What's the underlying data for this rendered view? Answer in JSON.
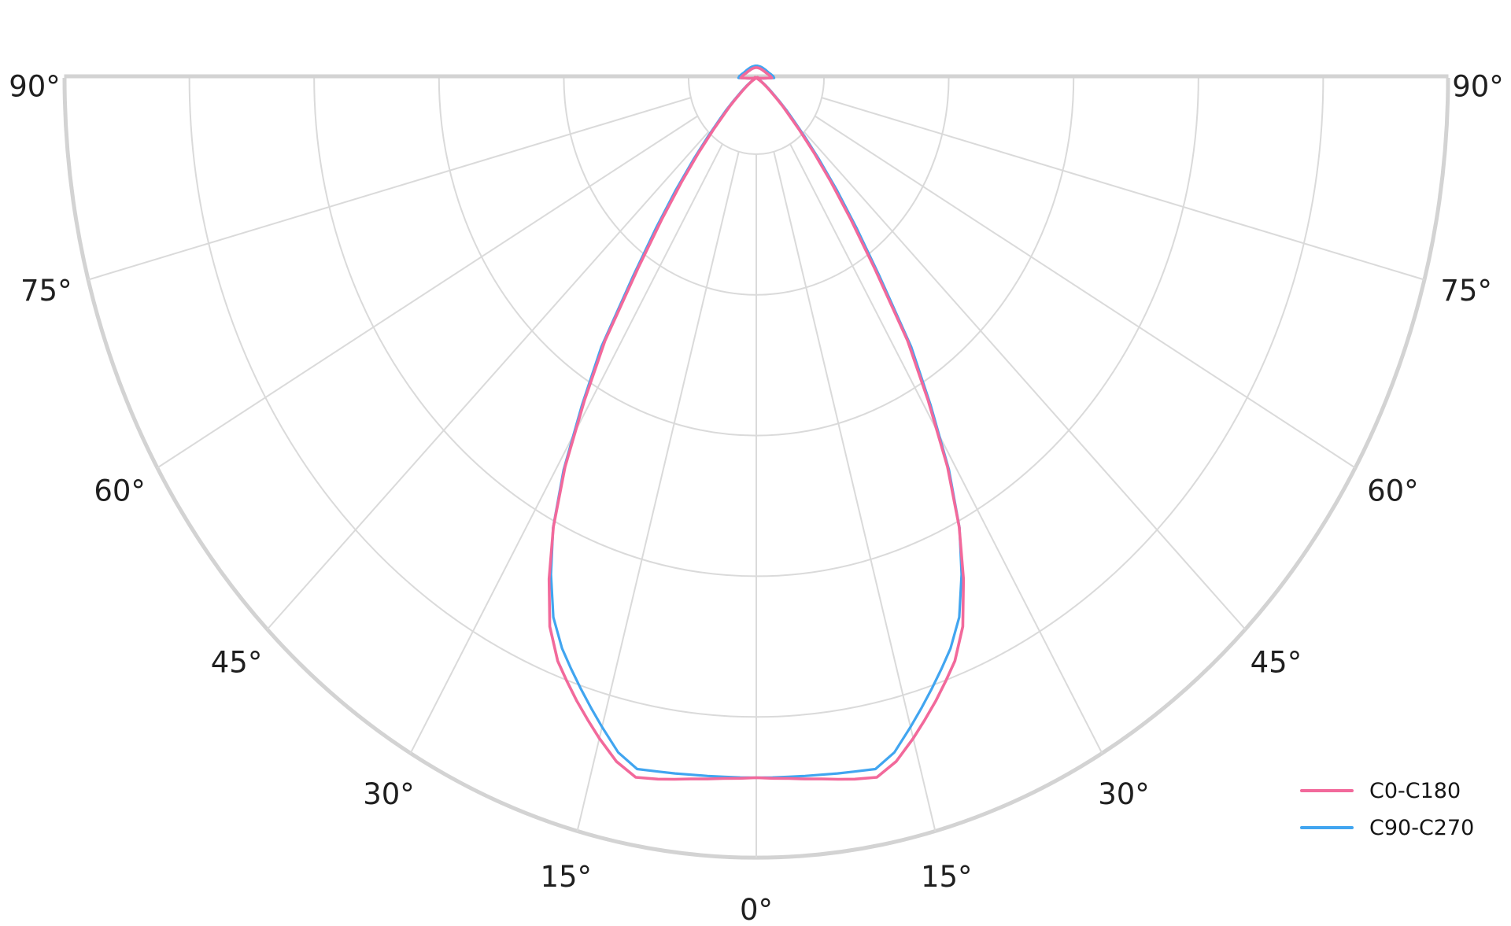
{
  "chart_data": {
    "type": "line",
    "subtype": "polar_photometric_intensity",
    "title": "",
    "orientation": "half_polar_downward",
    "angular_tick_degrees": [
      0,
      15,
      30,
      45,
      60,
      75,
      90
    ],
    "angular_tick_labels": [
      "0°",
      "15°",
      "30°",
      "45°",
      "60°",
      "75°",
      "90°"
    ],
    "angular_labels_both_sides": true,
    "radial_rings_fraction_of_max": [
      0.1667,
      0.3333,
      0.5,
      0.6667,
      0.8333,
      1.0
    ],
    "radial_ring_value_labels_shown": false,
    "grid": "on",
    "legend_position": "bottom-right",
    "series": [
      {
        "name": "C0-C180",
        "color": "#F2699B",
        "line_width": 3.6,
        "points_deg_intensity": [
          [
            0,
            0.905
          ],
          [
            3,
            0.907
          ],
          [
            6,
            0.911
          ],
          [
            9,
            0.917
          ],
          [
            11,
            0.92
          ],
          [
            13,
            0.907
          ],
          [
            15,
            0.886
          ],
          [
            18,
            0.852
          ],
          [
            21,
            0.816
          ],
          [
            23,
            0.782
          ],
          [
            25,
            0.731
          ],
          [
            27,
            0.673
          ],
          [
            29,
            0.603
          ],
          [
            31,
            0.522
          ],
          [
            33,
            0.447
          ],
          [
            35,
            0.352
          ],
          [
            37,
            0.286
          ],
          [
            39,
            0.235
          ],
          [
            41,
            0.194
          ],
          [
            43,
            0.161
          ],
          [
            45,
            0.136
          ],
          [
            48,
            0.113
          ],
          [
            50,
            0.101
          ],
          [
            53,
            0.091
          ],
          [
            56,
            0.084
          ],
          [
            60,
            0.079
          ],
          [
            65,
            0.076
          ],
          [
            70,
            0.0745
          ],
          [
            75,
            0.0745
          ],
          [
            80,
            0.0755
          ],
          [
            85,
            0.078
          ],
          [
            88,
            0.086
          ],
          [
            90,
            0.097
          ],
          [
            95,
            0.0955
          ],
          [
            100,
            0.094
          ],
          [
            110,
            0.0915
          ],
          [
            120,
            0.09
          ],
          [
            135,
            0.0888
          ],
          [
            150,
            0.0885
          ],
          [
            165,
            0.0884
          ],
          [
            180,
            0.0885
          ]
        ]
      },
      {
        "name": "C90-C270",
        "color": "#41A5F0",
        "line_width": 3.2,
        "points_deg_intensity": [
          [
            0,
            0.905
          ],
          [
            3,
            0.905
          ],
          [
            6,
            0.906
          ],
          [
            9,
            0.908
          ],
          [
            11,
            0.91
          ],
          [
            13,
            0.896
          ],
          [
            15,
            0.872
          ],
          [
            18,
            0.836
          ],
          [
            21,
            0.8
          ],
          [
            23,
            0.77
          ],
          [
            25,
            0.725
          ],
          [
            27,
            0.674
          ],
          [
            29,
            0.607
          ],
          [
            31,
            0.528
          ],
          [
            33,
            0.456
          ],
          [
            35,
            0.364
          ],
          [
            37,
            0.298
          ],
          [
            39,
            0.247
          ],
          [
            41,
            0.204
          ],
          [
            43,
            0.17
          ],
          [
            45,
            0.144
          ],
          [
            48,
            0.119
          ],
          [
            50,
            0.106
          ],
          [
            53,
            0.095
          ],
          [
            56,
            0.088
          ],
          [
            60,
            0.082
          ],
          [
            65,
            0.079
          ],
          [
            70,
            0.0775
          ],
          [
            75,
            0.0775
          ],
          [
            80,
            0.0785
          ],
          [
            85,
            0.081
          ],
          [
            88,
            0.089
          ],
          [
            90,
            0.1
          ],
          [
            95,
            0.099
          ],
          [
            100,
            0.097
          ],
          [
            110,
            0.094
          ],
          [
            120,
            0.0925
          ],
          [
            135,
            0.0912
          ],
          [
            150,
            0.0908
          ],
          [
            165,
            0.0906
          ],
          [
            180,
            0.0907
          ]
        ]
      }
    ],
    "legend": {
      "entries": [
        "C0-C180",
        "C90-C270"
      ]
    }
  },
  "colors": {
    "background": "#ffffff",
    "grid_minor": "#dadada",
    "grid_major": "#d3d3d3",
    "tick_label": "#1f1f1f",
    "legend_text": "#151515"
  }
}
